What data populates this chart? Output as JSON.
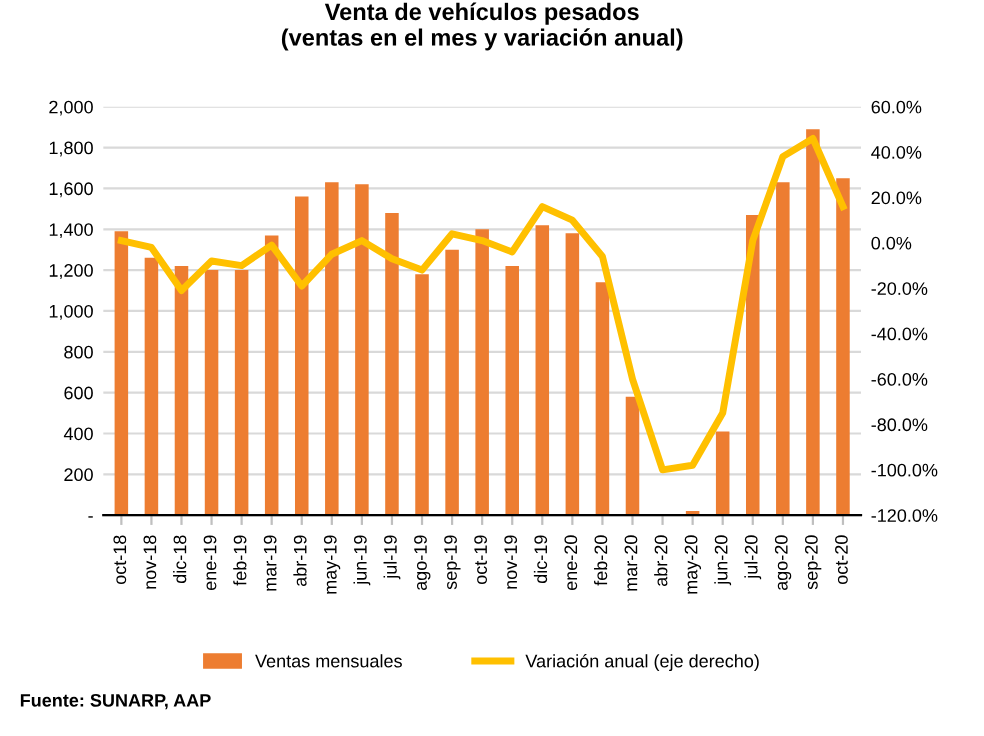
{
  "chart_data": {
    "type": "bar",
    "title": "Venta de vehículos pesados\n(ventas en el mes y variación anual)",
    "categories": [
      "oct-18",
      "nov-18",
      "dic-18",
      "ene-19",
      "feb-19",
      "mar-19",
      "abr-19",
      "may-19",
      "jun-19",
      "jul-19",
      "ago-19",
      "sep-19",
      "oct-19",
      "nov-19",
      "dic-19",
      "ene-20",
      "feb-20",
      "mar-20",
      "abr-20",
      "may-20",
      "jun-20",
      "jul-20",
      "ago-20",
      "sep-20",
      "oct-20"
    ],
    "series": [
      {
        "name": "Ventas mensuales",
        "color": "#ed7d31",
        "values": [
          1390,
          1260,
          1220,
          1200,
          1200,
          1370,
          1560,
          1630,
          1620,
          1480,
          1180,
          1300,
          1400,
          1220,
          1420,
          1380,
          1140,
          580,
          0,
          20,
          410,
          1470,
          1630,
          1890,
          1650
        ]
      },
      {
        "name": "Variación anual (eje derecho)",
        "type": "line",
        "axis": "y2",
        "color": "#ffc000",
        "values": [
          1,
          -2,
          -21,
          -8,
          -10,
          -1,
          -19,
          -5,
          1,
          -7,
          -12,
          4,
          1,
          -4,
          16,
          10,
          -6,
          -60,
          -100,
          -98,
          -75,
          1,
          38,
          46,
          16
        ]
      }
    ],
    "ylim": [
      0,
      2000
    ],
    "yticks": [
      {
        "value": 0,
        "label": "-"
      },
      {
        "value": 200,
        "label": "200"
      },
      {
        "value": 400,
        "label": "400"
      },
      {
        "value": 600,
        "label": "600"
      },
      {
        "value": 800,
        "label": "800"
      },
      {
        "value": 1000,
        "label": "1,000"
      },
      {
        "value": 1200,
        "label": "1,200"
      },
      {
        "value": 1400,
        "label": "1,400"
      },
      {
        "value": 1600,
        "label": "1,600"
      },
      {
        "value": 1800,
        "label": "1,800"
      },
      {
        "value": 2000,
        "label": "2,000"
      }
    ],
    "y2lim": [
      -120,
      60
    ],
    "y2ticks": [
      {
        "value": -120,
        "label": "-120.0%"
      },
      {
        "value": -100,
        "label": "-100.0%"
      },
      {
        "value": -80,
        "label": "-80.0%"
      },
      {
        "value": -60,
        "label": "-60.0%"
      },
      {
        "value": -40,
        "label": "-40.0%"
      },
      {
        "value": -20,
        "label": "-20.0%"
      },
      {
        "value": 0,
        "label": "0.0%"
      },
      {
        "value": 20,
        "label": "20.0%"
      },
      {
        "value": 40,
        "label": "40.0%"
      },
      {
        "value": 60,
        "label": "60.0%"
      }
    ],
    "grid": "y",
    "legend": "bottom",
    "marker": "none",
    "line_style": "solid",
    "annotations": [
      "Fuente: SUNARP, AAP"
    ]
  }
}
